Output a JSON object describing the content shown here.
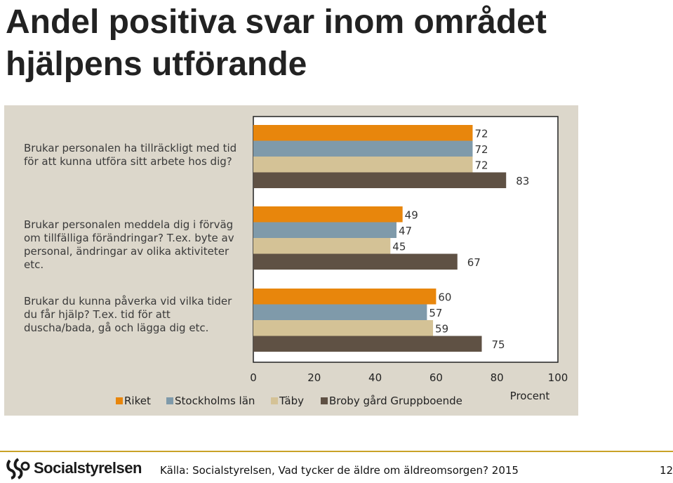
{
  "title": "Andel positiva svar inom området hjälpens utförande",
  "logo": {
    "text": "Socialstyrelsen",
    "icon": "socialstyrelsen-emblem-icon"
  },
  "footer": {
    "source": "Källa: Socialstyrelsen, Vad tycker de äldre om äldreomsorgen? 2015",
    "page": "12"
  },
  "chart_data": {
    "type": "bar",
    "orientation": "horizontal",
    "categories": [
      "Brukar personalen ha tillräckligt med tid för att kunna utföra sitt arbete hos dig?",
      "Brukar personalen meddela dig i förväg om tillfälliga förändringar? T.ex. byte av personal, ändringar av olika aktiviteter etc.",
      "Brukar du kunna påverka vid vilka tider du får hjälp? T.ex. tid för att duscha/bada, gå och lägga dig etc."
    ],
    "series": [
      {
        "name": "Riket",
        "color": "#e8860c",
        "values": [
          72,
          49,
          60
        ]
      },
      {
        "name": "Stockholms län",
        "color": "#7f9aaa",
        "values": [
          72,
          47,
          57
        ]
      },
      {
        "name": "Täby",
        "color": "#d4c296",
        "values": [
          72,
          45,
          59
        ]
      },
      {
        "name": "Broby gård Gruppboende",
        "color": "#5f5144",
        "values": [
          83,
          67,
          75
        ]
      }
    ],
    "xlim": [
      0,
      100
    ],
    "xticks": [
      "0",
      "20",
      "40",
      "60",
      "80",
      "100"
    ],
    "xlabel": "Procent",
    "legend_position": "bottom"
  }
}
